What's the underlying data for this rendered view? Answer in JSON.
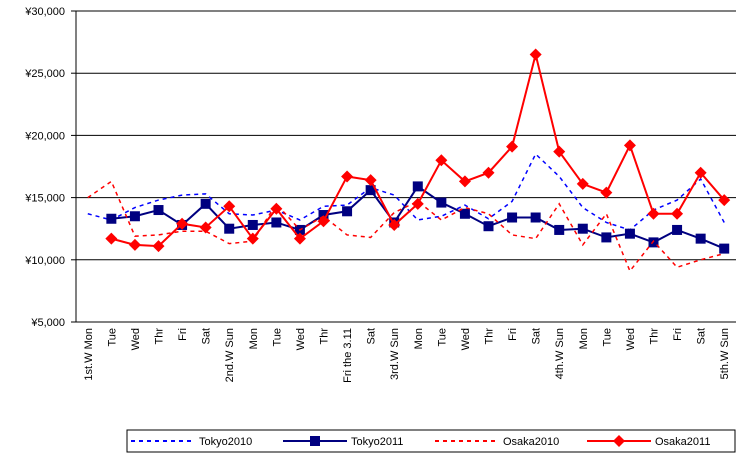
{
  "chart_data": {
    "type": "line",
    "categories": [
      "1st.W Mon",
      "Tue",
      "Wed",
      "Thr",
      "Fri",
      "Sat",
      "2nd.W Sun",
      "Mon",
      "Tue",
      "Wed",
      "Thr",
      "Fri the 3.11",
      "Sat",
      "3rd.W Sun",
      "Mon",
      "Tue",
      "Wed",
      "Thr",
      "Fri",
      "Sat",
      "4th.W Sun",
      "Mon",
      "Tue",
      "Wed",
      "Thr",
      "Fri",
      "Sat",
      "5th.W Sun"
    ],
    "ylim": [
      5000,
      30000
    ],
    "yticks": [
      {
        "value": 5000,
        "label": "¥5,000"
      },
      {
        "value": 10000,
        "label": "¥10,000"
      },
      {
        "value": 15000,
        "label": "¥15,000"
      },
      {
        "value": 20000,
        "label": "¥20,000"
      },
      {
        "value": 25000,
        "label": "¥25,000"
      },
      {
        "value": 30000,
        "label": "¥30,000"
      }
    ],
    "grid": true,
    "legend": "bottom",
    "series": [
      {
        "name": "Tokyo2010",
        "color": "#0000ff",
        "dash": true,
        "marker": null,
        "values": [
          13700,
          13200,
          14200,
          14800,
          15200,
          15300,
          13700,
          13600,
          14000,
          13200,
          14300,
          14400,
          15800,
          15200,
          13200,
          13500,
          14400,
          13300,
          14700,
          18500,
          16700,
          14200,
          13000,
          12400,
          14000,
          14800,
          16500,
          13000
        ]
      },
      {
        "name": "Tokyo2011",
        "color": "#000080",
        "dash": false,
        "marker": "square",
        "values": [
          null,
          13300,
          13500,
          14000,
          12800,
          14500,
          12500,
          12800,
          13000,
          12400,
          13600,
          13900,
          15600,
          13000,
          15900,
          14600,
          13700,
          12700,
          13400,
          13400,
          12400,
          12500,
          11800,
          12100,
          11400,
          12400,
          11700,
          10900
        ]
      },
      {
        "name": "Osaka2010",
        "color": "#ff0000",
        "dash": true,
        "marker": null,
        "values": [
          15000,
          16300,
          11900,
          12000,
          12300,
          12300,
          11300,
          11500,
          14500,
          12400,
          13500,
          12000,
          11800,
          13800,
          14700,
          13200,
          14200,
          13700,
          12000,
          11700,
          14500,
          11200,
          13700,
          9100,
          11500,
          9400,
          10000,
          10500
        ]
      },
      {
        "name": "Osaka2011",
        "color": "#ff0000",
        "dash": false,
        "marker": "diamond",
        "values": [
          null,
          11700,
          11200,
          11100,
          12900,
          12600,
          14300,
          11700,
          14100,
          11700,
          13100,
          16700,
          16400,
          12800,
          14500,
          18000,
          16300,
          17000,
          19100,
          26500,
          18700,
          16100,
          15400,
          19200,
          13700,
          13700,
          17000,
          14800
        ]
      }
    ]
  }
}
